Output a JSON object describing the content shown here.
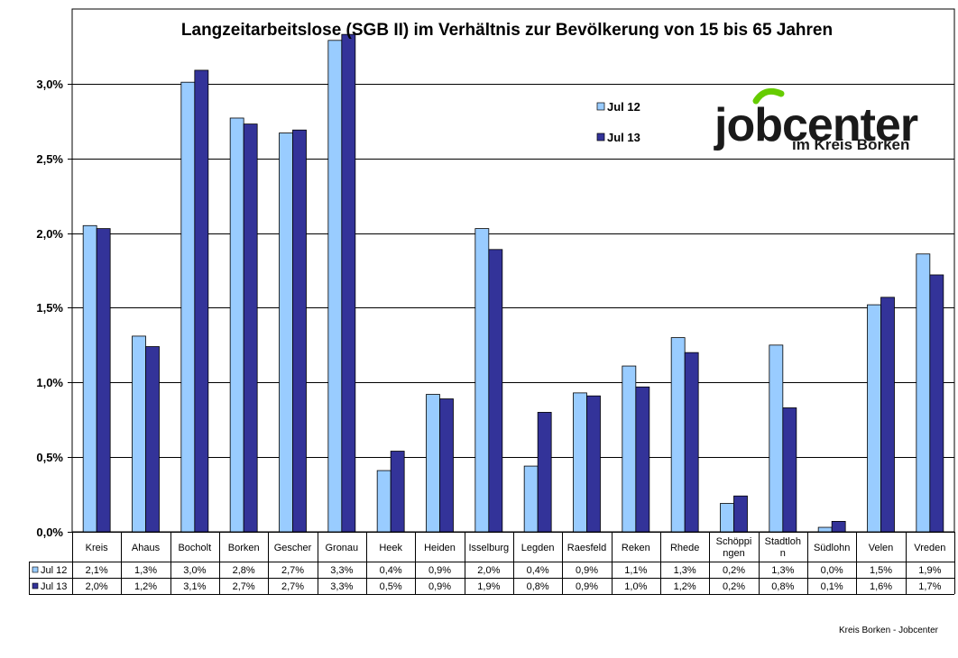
{
  "chart_data": {
    "type": "bar",
    "title": "Langzeitarbeitslose (SGB II) im Verhältnis zur Bevölkerung von 15 bis 65 Jahren",
    "xlabel": "",
    "ylabel": "",
    "ylim": [
      0,
      3.5
    ],
    "yticks": [
      0.0,
      0.5,
      1.0,
      1.5,
      2.0,
      2.5,
      3.0
    ],
    "ytick_labels": [
      "0,0%",
      "0,5%",
      "1,0%",
      "1,5%",
      "2,0%",
      "2,5%",
      "3,0%"
    ],
    "grid": true,
    "legend_position": "top-right",
    "categories": [
      [
        "Kreis"
      ],
      [
        "Ahaus"
      ],
      [
        "Bocholt"
      ],
      [
        "Borken"
      ],
      [
        "Gescher"
      ],
      [
        "Gronau"
      ],
      [
        "Heek"
      ],
      [
        "Heiden"
      ],
      [
        "Isselburg"
      ],
      [
        "Legden"
      ],
      [
        "Raesfeld"
      ],
      [
        "Reken"
      ],
      [
        "Rhede"
      ],
      [
        "Schöppi",
        "ngen"
      ],
      [
        "Stadtloh",
        "n"
      ],
      [
        "Südlohn"
      ],
      [
        "Velen"
      ],
      [
        "Vreden"
      ]
    ],
    "series": [
      {
        "name": "Jul 12",
        "color": "#99CCFF",
        "values": [
          2.05,
          1.31,
          3.01,
          2.77,
          2.67,
          3.29,
          0.41,
          0.92,
          2.03,
          0.44,
          0.93,
          1.11,
          1.3,
          0.19,
          1.25,
          0.03,
          1.52,
          1.86
        ],
        "labels": [
          "2,1%",
          "1,3%",
          "3,0%",
          "2,8%",
          "2,7%",
          "3,3%",
          "0,4%",
          "0,9%",
          "2,0%",
          "0,4%",
          "0,9%",
          "1,1%",
          "1,3%",
          "0,2%",
          "1,3%",
          "0,0%",
          "1,5%",
          "1,9%"
        ]
      },
      {
        "name": "Jul 13",
        "color": "#333399",
        "values": [
          2.03,
          1.24,
          3.09,
          2.73,
          2.69,
          3.33,
          0.54,
          0.89,
          1.89,
          0.8,
          0.91,
          0.97,
          1.2,
          0.24,
          0.83,
          0.07,
          1.57,
          1.72
        ],
        "labels": [
          "2,0%",
          "1,2%",
          "3,1%",
          "2,7%",
          "2,7%",
          "3,3%",
          "0,5%",
          "0,9%",
          "1,9%",
          "0,8%",
          "0,9%",
          "1,0%",
          "1,2%",
          "0,2%",
          "0,8%",
          "0,1%",
          "1,6%",
          "1,7%"
        ]
      }
    ]
  },
  "logo": {
    "name": "jobcenter",
    "subtitle": "im Kreis Borken",
    "accent_color": "#66CC00"
  },
  "footer": {
    "text": "Kreis Borken - Jobcenter"
  }
}
